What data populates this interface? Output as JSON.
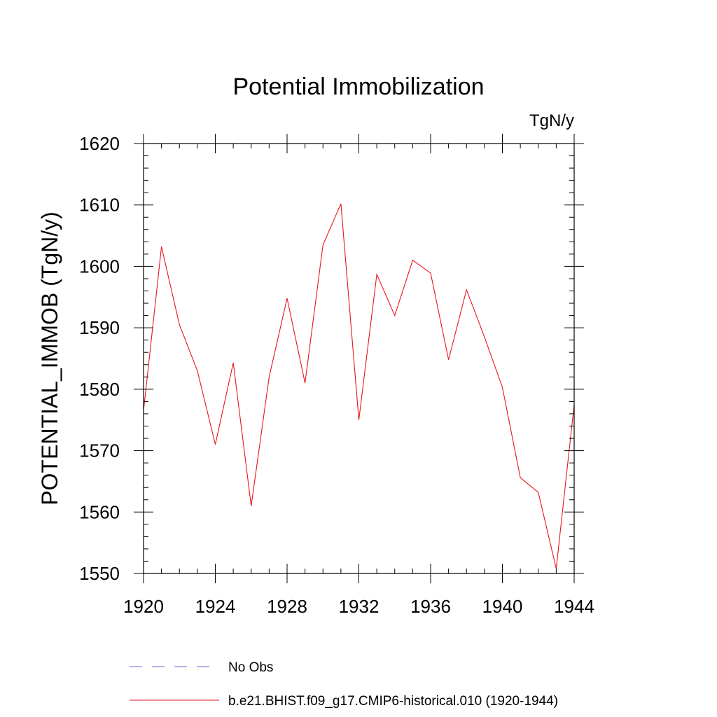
{
  "chart_data": {
    "type": "line",
    "title": "Potential Immobilization",
    "units_label": "TgN/y",
    "xlabel": "",
    "ylabel": "POTENTIAL_IMMOB  (TgN/y)",
    "xlim": [
      1920,
      1944
    ],
    "ylim": [
      1550,
      1620
    ],
    "x_ticks": [
      1920,
      1924,
      1928,
      1932,
      1936,
      1940,
      1944
    ],
    "y_ticks": [
      1550,
      1560,
      1570,
      1580,
      1590,
      1600,
      1610,
      1620
    ],
    "x_minor_step": 1,
    "y_minor_step": 2,
    "grid": false,
    "legend_position": "bottom",
    "series": [
      {
        "name": "No Obs",
        "color": "#6a6acd",
        "style": "dashed",
        "x": [],
        "values": []
      },
      {
        "name": "b.e21.BHIST.f09_g17.CMIP6-historical.010 (1920-1944)",
        "color": "#e8141c",
        "style": "solid",
        "x": [
          1920,
          1921,
          1922,
          1923,
          1924,
          1925,
          1926,
          1927,
          1928,
          1929,
          1930,
          1931,
          1932,
          1933,
          1934,
          1935,
          1936,
          1937,
          1938,
          1939,
          1940,
          1941,
          1942,
          1943,
          1944
        ],
        "values": [
          1576.5,
          1603.2,
          1590.5,
          1583.0,
          1571.0,
          1584.3,
          1561.0,
          1582.0,
          1594.8,
          1581.0,
          1603.5,
          1610.2,
          1575.0,
          1598.7,
          1592.0,
          1601.0,
          1598.9,
          1584.8,
          1596.2,
          1588.5,
          1580.3,
          1565.6,
          1563.2,
          1550.8,
          1577.5
        ]
      }
    ]
  }
}
